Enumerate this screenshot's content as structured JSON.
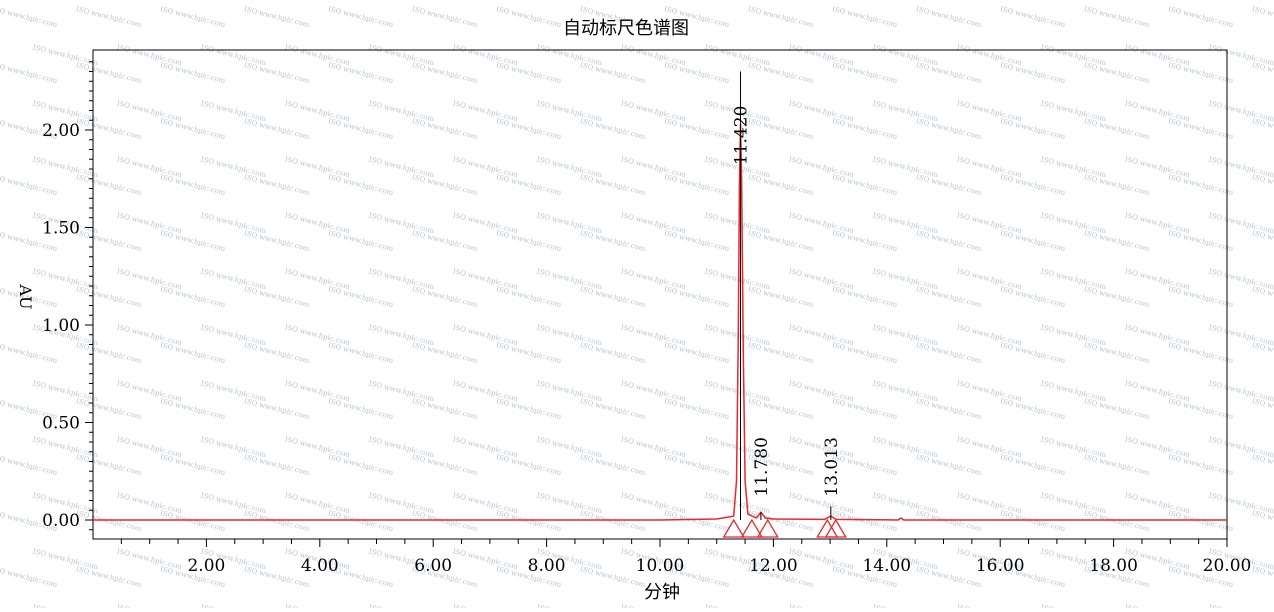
{
  "chart_data": {
    "type": "line",
    "title": "自动标尺色谱图",
    "xlabel": "分钟",
    "ylabel": "AU",
    "xlim": [
      0,
      20
    ],
    "ylim": [
      -0.1,
      2.4
    ],
    "x_ticks": [
      "2.00",
      "4.00",
      "6.00",
      "8.00",
      "10.00",
      "12.00",
      "14.00",
      "16.00",
      "18.00",
      "20.00"
    ],
    "x_tick_values": [
      2,
      4,
      6,
      8,
      10,
      12,
      14,
      16,
      18,
      20
    ],
    "y_ticks": [
      "0.00",
      "0.50",
      "1.00",
      "1.50",
      "2.00"
    ],
    "y_tick_values": [
      0,
      0.5,
      1.0,
      1.5,
      2.0
    ],
    "grid": false,
    "series": [
      {
        "color": "#e8282d",
        "x": [
          0.0,
          5.0,
          10.0,
          11.0,
          11.3,
          11.35,
          11.38,
          11.4,
          11.42,
          11.44,
          11.47,
          11.5,
          11.55,
          11.7,
          11.78,
          11.86,
          12.0,
          12.9,
          13.013,
          13.1,
          14.2,
          14.25,
          14.3,
          20.0
        ],
        "y": [
          0.0,
          0.0,
          0.0,
          0.005,
          0.02,
          0.2,
          0.9,
          1.7,
          2.03,
          1.75,
          0.85,
          0.2,
          0.03,
          0.01,
          0.04,
          0.01,
          0.005,
          0.003,
          0.02,
          0.003,
          0.0,
          0.01,
          0.0,
          0.0
        ]
      }
    ],
    "peaks": [
      {
        "label": "11.420",
        "rt": 11.42,
        "marker_top": 2.3,
        "label_y": 1.82
      },
      {
        "label": "11.780",
        "rt": 11.78,
        "marker_top": 0.04,
        "label_y": 0.12
      },
      {
        "label": "13.013",
        "rt": 13.013,
        "marker_top": 0.07,
        "label_y": 0.12
      }
    ],
    "baseline_markers_x": [
      11.3,
      11.62,
      11.9,
      12.95,
      13.1
    ],
    "colors": {
      "trace": "#e8282d",
      "axis": "#000000",
      "watermark": "#b8c4d4"
    },
    "watermark_text": "ISO www.hplc.com"
  }
}
